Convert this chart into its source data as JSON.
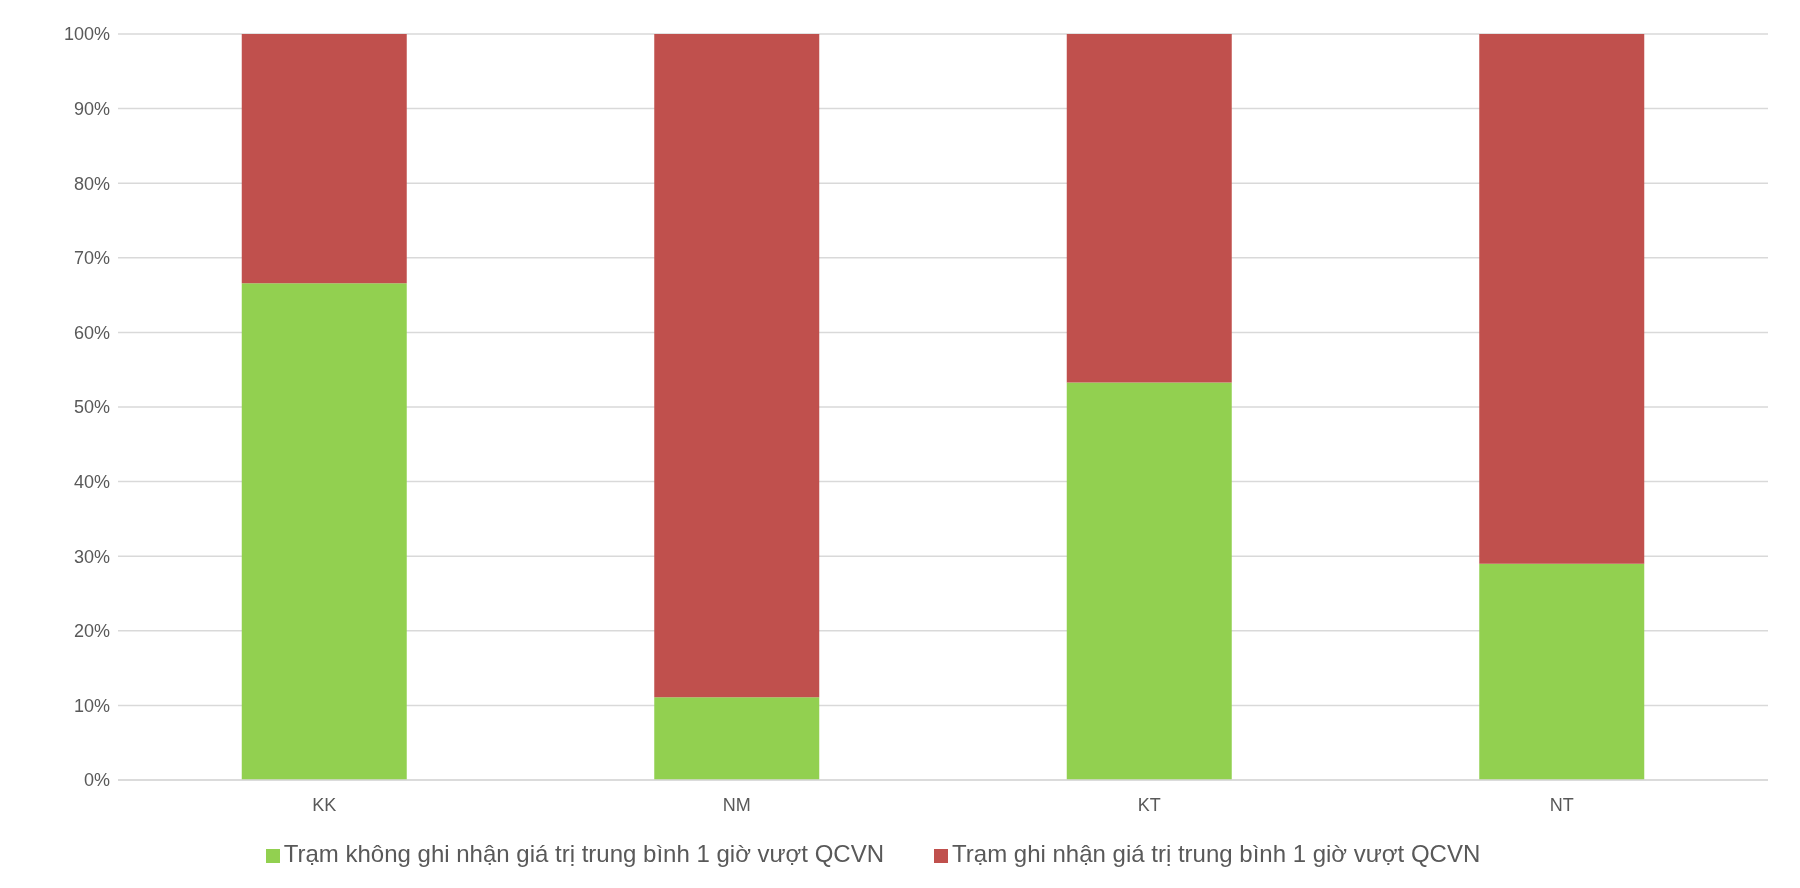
{
  "chart_data": {
    "type": "bar",
    "stacked": true,
    "categories": [
      "KK",
      "NM",
      "KT",
      "NT"
    ],
    "series": [
      {
        "name": "Trạm không ghi nhận giá trị trung bình 1 giờ vượt QCVN",
        "color": "#92d050",
        "values": [
          66.6,
          11.1,
          53.3,
          29.0
        ]
      },
      {
        "name": "Trạm ghi nhận giá trị trung bình 1 giờ vượt QCVN",
        "color": "#c0504d",
        "values": [
          33.4,
          88.9,
          46.7,
          71.0
        ]
      }
    ],
    "ylim": [
      0,
      100
    ],
    "yticks": [
      {
        "value": 0,
        "label": "0%"
      },
      {
        "value": 10,
        "label": "10%"
      },
      {
        "value": 20,
        "label": "20%"
      },
      {
        "value": 30,
        "label": "30%"
      },
      {
        "value": 40,
        "label": "40%"
      },
      {
        "value": 50,
        "label": "50%"
      },
      {
        "value": 60,
        "label": "60%"
      },
      {
        "value": 70,
        "label": "70%"
      },
      {
        "value": 80,
        "label": "80%"
      },
      {
        "value": 90,
        "label": "90%"
      },
      {
        "value": 100,
        "label": "100%"
      }
    ],
    "grid": "y",
    "legend": "bottom"
  }
}
